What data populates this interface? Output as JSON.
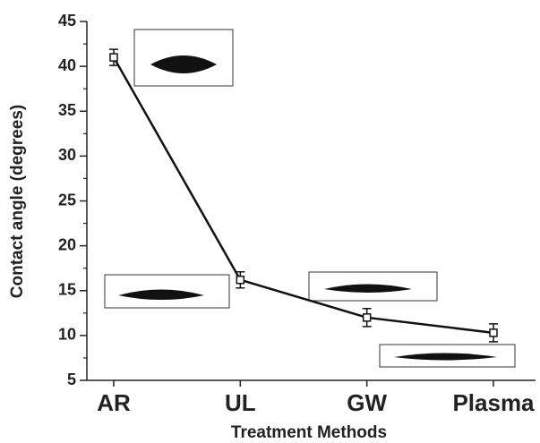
{
  "chart_data": {
    "type": "line",
    "x_label": "Treatment Methods",
    "y_label": "Contact angle (degrees)",
    "categories": [
      "AR",
      "UL",
      "GW",
      "Plasma"
    ],
    "values": [
      41,
      16.2,
      12,
      10.3
    ],
    "errors": [
      0.9,
      0.9,
      1,
      1
    ],
    "color": "#111111",
    "ylim": [
      5,
      45
    ],
    "yticks": [
      5,
      10,
      15,
      20,
      25,
      30,
      35,
      40,
      45
    ],
    "grid": false
  }
}
